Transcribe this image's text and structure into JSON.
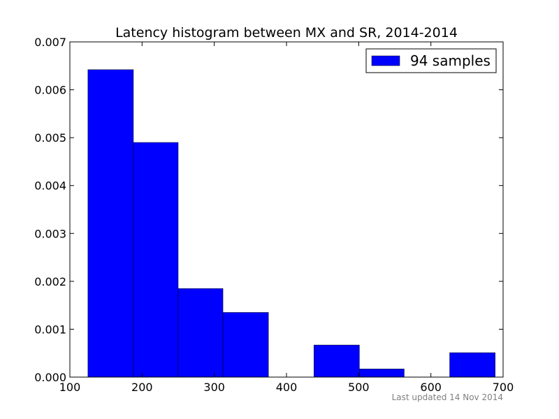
{
  "chart_data": {
    "type": "bar",
    "title": "Latency histogram between MX and SR, 2014-2014",
    "xlabel": "",
    "ylabel": "",
    "xlim": [
      100,
      700
    ],
    "ylim": [
      0,
      0.007
    ],
    "x_ticks": [
      100,
      200,
      300,
      400,
      500,
      600,
      700
    ],
    "x_tick_labels": [
      "100",
      "200",
      "300",
      "400",
      "500",
      "600",
      "700"
    ],
    "y_ticks": [
      0,
      0.001,
      0.002,
      0.003,
      0.004,
      0.005,
      0.006,
      0.007
    ],
    "y_tick_labels": [
      "0.000",
      "0.001",
      "0.002",
      "0.003",
      "0.004",
      "0.005",
      "0.006",
      "0.007"
    ],
    "bin_edges": [
      125,
      188,
      250,
      312,
      375,
      438,
      501,
      563,
      626,
      689
    ],
    "values": [
      0.00642,
      0.0049,
      0.00185,
      0.00135,
      0,
      0.00067,
      0.00017,
      0,
      0.00051
    ],
    "bar_color": "#0000ff",
    "grid": false,
    "legend": {
      "entries": [
        "94 samples"
      ],
      "placement": "top-right"
    }
  },
  "footer": {
    "last_updated": "Last updated 14 Nov 2014"
  }
}
